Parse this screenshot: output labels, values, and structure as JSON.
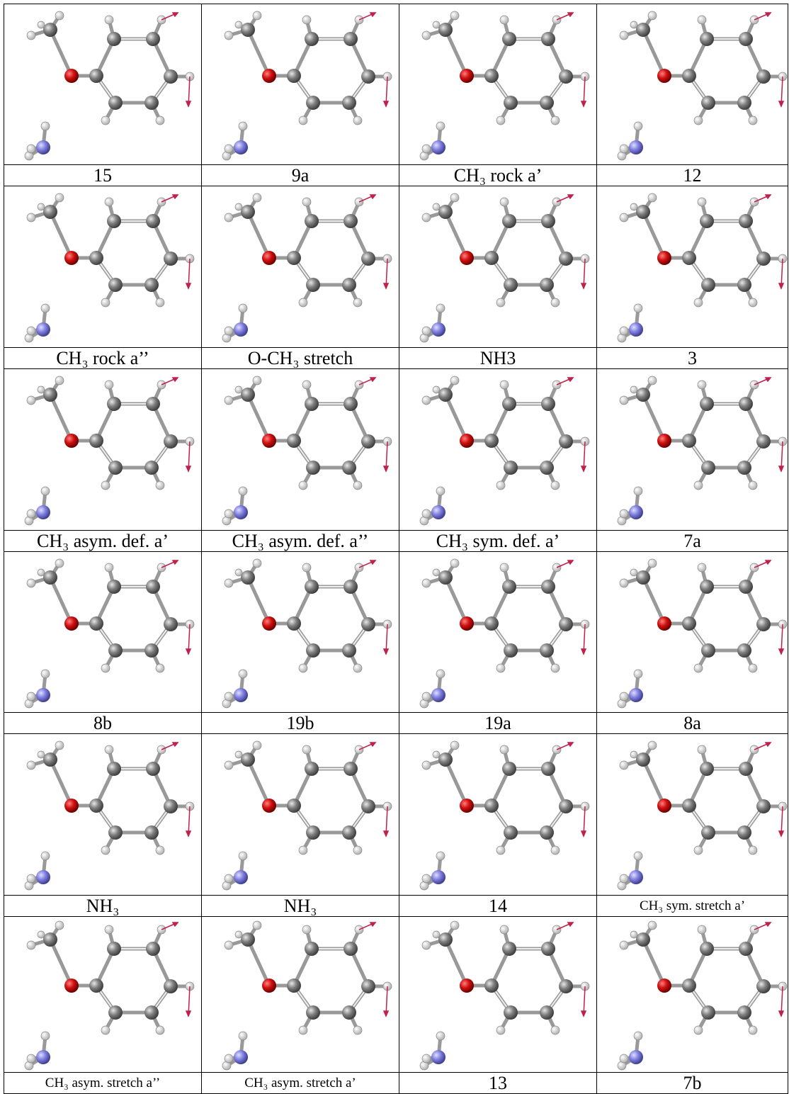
{
  "table": {
    "rows": [
      [
        "15",
        "9a",
        "CH₃ rock a’",
        "12"
      ],
      [
        "CH₃ rock a’’",
        "O-CH₃ stretch",
        "NH3",
        "3"
      ],
      [
        "CH₃ asym. def. a’",
        "CH₃ asym. def. a’’",
        "CH₃ sym. def. a’",
        "7a"
      ],
      [
        "8b",
        "19b",
        "19a",
        "8a"
      ],
      [
        "NH₃",
        "NH₃",
        "14",
        "CH₃ sym. stretch a’"
      ],
      [
        "CH₃ asym. stretch a’’",
        "CH₃ asym. stretch a’",
        "13",
        "7b"
      ]
    ]
  }
}
